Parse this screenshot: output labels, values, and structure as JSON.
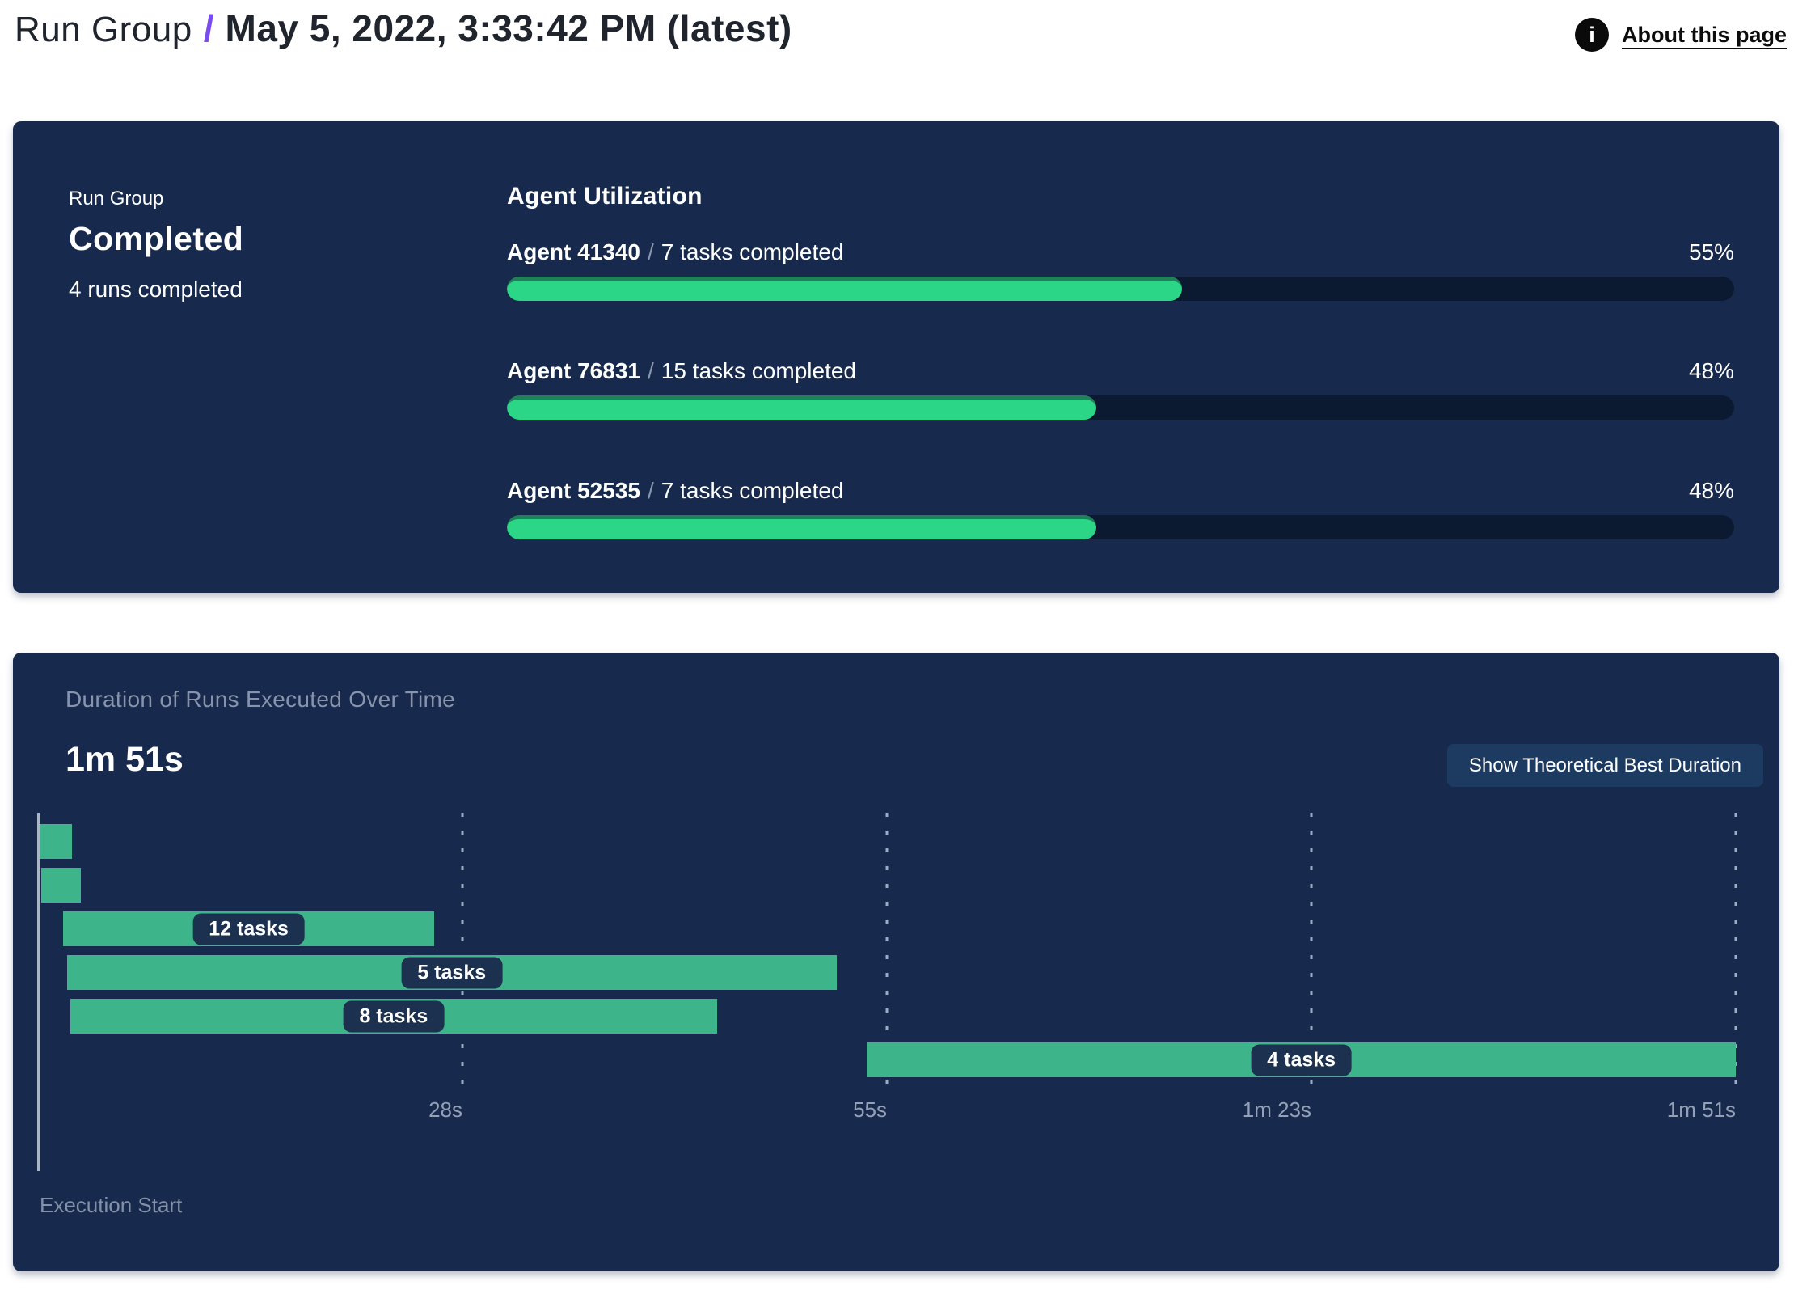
{
  "header": {
    "breadcrumb_root": "Run Group",
    "breadcrumb_separator": "/",
    "title": "May 5, 2022, 3:33:42 PM (latest)",
    "info_icon_glyph": "i",
    "about_link": "About this page"
  },
  "summary_panel": {
    "label": "Run Group",
    "status": "Completed",
    "runs_completed": "4 runs completed",
    "section_title": "Agent Utilization",
    "agents": [
      {
        "name": "Agent 41340",
        "separator": "/",
        "tasks": "7 tasks completed",
        "utilization_pct": 55,
        "pct_label": "55%"
      },
      {
        "name": "Agent 76831",
        "separator": "/",
        "tasks": "15 tasks completed",
        "utilization_pct": 48,
        "pct_label": "48%"
      },
      {
        "name": "Agent 52535",
        "separator": "/",
        "tasks": "7 tasks completed",
        "utilization_pct": 48,
        "pct_label": "48%"
      }
    ]
  },
  "duration_panel": {
    "title": "Duration of Runs Executed Over Time",
    "total_duration": "1m 51s",
    "button_label": "Show Theoretical Best Duration",
    "execution_start_label": "Execution Start"
  },
  "chart_data": {
    "type": "gantt",
    "title": "Duration of Runs Executed Over Time",
    "total_duration_label": "1m 51s",
    "total_duration_seconds": 111,
    "x_axis_start_label": "Execution Start",
    "x_ticks": [
      {
        "label": "28s",
        "seconds": 27.75
      },
      {
        "label": "55s",
        "seconds": 55.5
      },
      {
        "label": "1m 23s",
        "seconds": 83.25
      },
      {
        "label": "1m 51s",
        "seconds": 111
      }
    ],
    "bars": [
      {
        "tasks_label": null,
        "start_s": 0.1,
        "end_s": 2.2
      },
      {
        "tasks_label": null,
        "start_s": 0.2,
        "end_s": 2.8
      },
      {
        "tasks_label": "12 tasks",
        "start_s": 1.65,
        "end_s": 25.9
      },
      {
        "tasks_label": "5 tasks",
        "start_s": 1.9,
        "end_s": 52.2
      },
      {
        "tasks_label": "8 tasks",
        "start_s": 2.1,
        "end_s": 44.4
      },
      {
        "tasks_label": "4 tasks",
        "start_s": 54.2,
        "end_s": 111.0
      }
    ],
    "layout": {
      "grid": "dotted-vertical",
      "tick_alignment": "right-edge-on-gridline"
    }
  },
  "colors": {
    "accent_purple": "#7a4bf0",
    "panel_background": "#172a4d",
    "progress_track": "#0c1a31",
    "progress_fill": "#2bd687",
    "progress_fill_edge": "#1f8159",
    "gantt_bar": "#3eb48b",
    "task_pill_background": "#1c3150",
    "button_background": "#1d3b61",
    "muted_text": "#8794ab",
    "tick_text": "#93a0b6"
  }
}
